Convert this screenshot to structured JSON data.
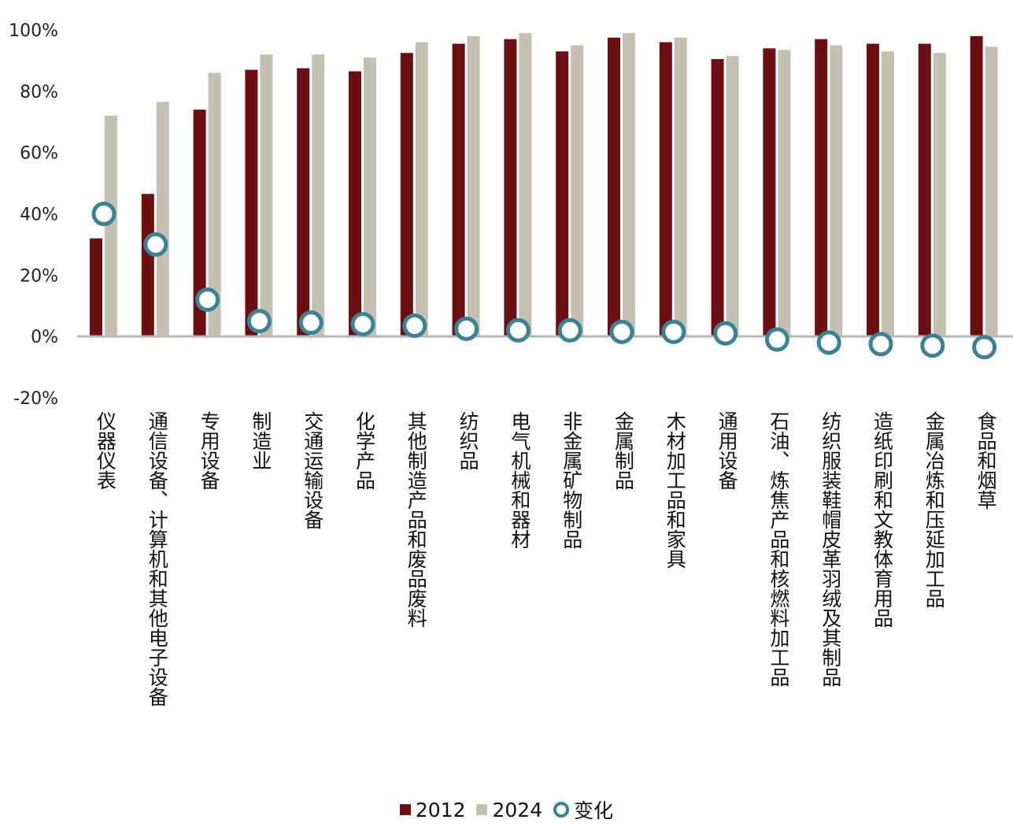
{
  "chart_data": {
    "type": "bar",
    "categories": [
      "仪器仪表",
      "通信设备、计算机和其他电子设备",
      "专用设备",
      "制造业",
      "交通运输设备",
      "化学产品",
      "其他制造产品和废品废料",
      "纺织品",
      "电气机械和器材",
      "非金属矿物制品",
      "金属制品",
      "木材加工品和家具",
      "通用设备",
      "石油、炼焦产品和核燃料加工品",
      "纺织服装鞋帽皮革羽绒及其制品",
      "造纸印刷和文教体育用品",
      "金属冶炼和压延加工品",
      "食品和烟草"
    ],
    "series": [
      {
        "name": "2012",
        "type": "bar",
        "color": "#6b0f12",
        "values": [
          32,
          46.5,
          74,
          87,
          87.5,
          86.5,
          92.5,
          95.5,
          97,
          93,
          97.5,
          96,
          90.5,
          94,
          97,
          95.5,
          95.5,
          98
        ]
      },
      {
        "name": "2024",
        "type": "bar",
        "color": "#c4c1b3",
        "values": [
          72,
          76.5,
          86,
          92,
          92,
          91,
          96,
          98,
          99,
          95,
          99,
          97.5,
          91.5,
          93.5,
          95,
          93,
          92.5,
          94.5
        ]
      },
      {
        "name": "变化",
        "type": "scatter",
        "color": "#3a8294",
        "values": [
          40,
          30,
          12,
          5,
          4.5,
          4,
          3.5,
          2.5,
          2,
          2,
          1.5,
          1.5,
          1,
          -1,
          -2,
          -2.5,
          -3,
          -3.5
        ]
      }
    ],
    "ylim": [
      -20,
      100
    ],
    "yticks": [
      -20,
      0,
      20,
      40,
      60,
      80,
      100
    ],
    "ytick_labels": [
      "-20%",
      "0%",
      "20%",
      "40%",
      "60%",
      "80%",
      "100%"
    ],
    "title": "",
    "xlabel": "",
    "ylabel": "",
    "grid": false,
    "legend_position": "bottom"
  }
}
